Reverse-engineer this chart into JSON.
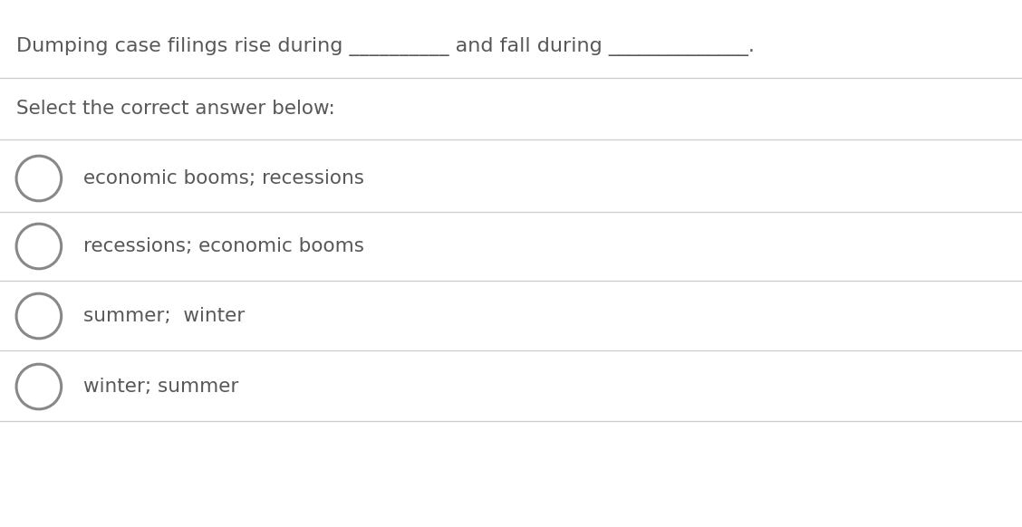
{
  "question": "Dumping case filings rise during __________ and fall during ______________.",
  "instruction": "Select the correct answer below:",
  "options": [
    "economic booms; recessions",
    "recessions; economic booms",
    "summer;  winter",
    "winter; summer"
  ],
  "bg_color": "#ffffff",
  "text_color": "#585858",
  "line_color": "#cccccc",
  "circle_color": "#888888",
  "font_size_question": 16.0,
  "font_size_instruction": 15.5,
  "font_size_options": 15.5,
  "fig_width": 11.28,
  "fig_height": 5.82
}
